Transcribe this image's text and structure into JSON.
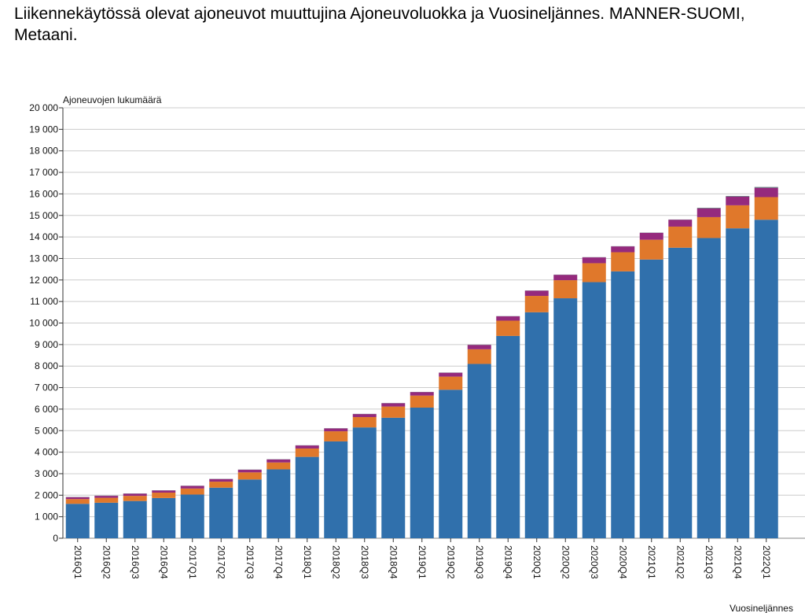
{
  "chart_title": "Liikennekäytössä olevat ajoneuvot muuttujina Ajoneuvoluokka ja Vuosineljännes. MANNER-SUOMI, Metaani.",
  "chart_data": {
    "type": "bar",
    "stacked": true,
    "title": "Liikennekäytössä olevat ajoneuvot muuttujina Ajoneuvoluokka ja Vuosineljännes. MANNER-SUOMI, Metaani.",
    "ylabel": "Ajoneuvojen lukumäärä",
    "xlabel": "Vuosineljännes",
    "ylim": [
      0,
      20000
    ],
    "yticks": [
      0,
      1000,
      2000,
      3000,
      4000,
      5000,
      6000,
      7000,
      8000,
      9000,
      10000,
      11000,
      12000,
      13000,
      14000,
      15000,
      16000,
      17000,
      18000,
      19000,
      20000
    ],
    "ytick_labels": [
      "0",
      "1 000",
      "2 000",
      "3 000",
      "4 000",
      "5 000",
      "6 000",
      "7 000",
      "8 000",
      "9 000",
      "10 000",
      "11 000",
      "12 000",
      "13 000",
      "14 000",
      "15 000",
      "16 000",
      "17 000",
      "18 000",
      "19 000",
      "20 000"
    ],
    "grid": true,
    "legend": "none",
    "categories": [
      "2016Q1",
      "2016Q2",
      "2016Q3",
      "2016Q4",
      "2017Q1",
      "2017Q2",
      "2017Q3",
      "2017Q4",
      "2018Q1",
      "2018Q2",
      "2018Q3",
      "2018Q4",
      "2019Q1",
      "2019Q2",
      "2019Q3",
      "2019Q4",
      "2020Q1",
      "2020Q2",
      "2020Q3",
      "2020Q4",
      "2021Q1",
      "2021Q2",
      "2021Q3",
      "2021Q4",
      "2022Q1"
    ],
    "series": [
      {
        "color": "#3070ac",
        "values": [
          1600,
          1650,
          1730,
          1870,
          2030,
          2350,
          2730,
          3200,
          3780,
          4500,
          5150,
          5600,
          6070,
          6900,
          8100,
          9400,
          10500,
          11150,
          11900,
          12400,
          12950,
          13500,
          13950,
          14400,
          14800
        ]
      },
      {
        "color": "#e0782b",
        "values": [
          220,
          230,
          240,
          250,
          280,
          280,
          330,
          320,
          390,
          470,
          480,
          520,
          560,
          610,
          680,
          710,
          760,
          840,
          880,
          890,
          920,
          980,
          970,
          1070,
          1050
        ]
      },
      {
        "color": "#952a7d",
        "values": [
          90,
          90,
          100,
          100,
          120,
          120,
          120,
          140,
          140,
          130,
          140,
          150,
          160,
          180,
          200,
          200,
          240,
          250,
          270,
          270,
          320,
          320,
          400,
          400,
          430
        ]
      },
      {
        "color": "#5b6b74",
        "values": [
          10,
          10,
          10,
          10,
          10,
          10,
          10,
          10,
          10,
          10,
          10,
          10,
          10,
          10,
          10,
          10,
          10,
          10,
          10,
          10,
          10,
          10,
          30,
          30,
          40
        ]
      }
    ]
  }
}
